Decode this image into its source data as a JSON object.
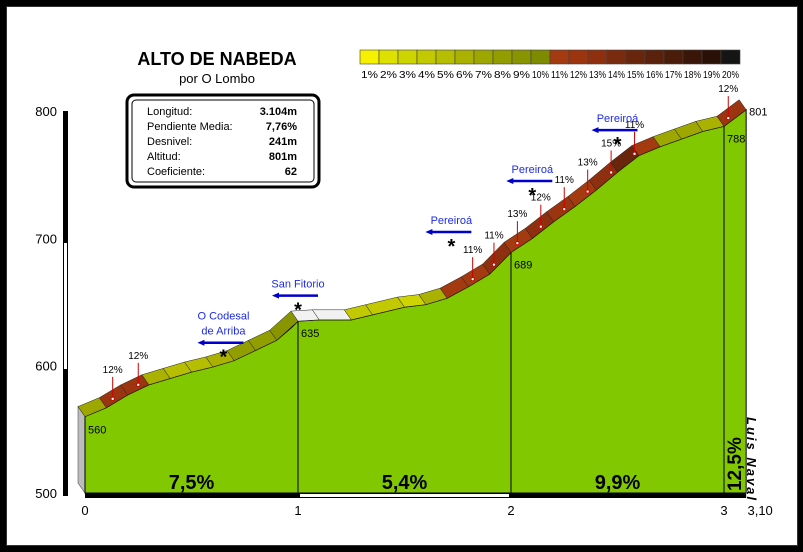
{
  "chart_data": {
    "type": "area",
    "title": "ALTO DE NABEDA",
    "subtitle": "por O Lombo",
    "info": [
      {
        "label": "Longitud:",
        "value": "3.104m"
      },
      {
        "label": "Pendiente Media:",
        "value": "7,76%"
      },
      {
        "label": "Desnivel:",
        "value": "241m"
      },
      {
        "label": "Altitud:",
        "value": "801m"
      },
      {
        "label": "Coeficiente:",
        "value": "62"
      }
    ],
    "scale": {
      "labels": [
        "1%",
        "2%",
        "3%",
        "4%",
        "5%",
        "6%",
        "7%",
        "8%",
        "9%",
        "10%",
        "11%",
        "12%",
        "13%",
        "14%",
        "15%",
        "16%",
        "17%",
        "18%",
        "19%",
        "20%"
      ],
      "colors": [
        "#f6f100",
        "#dde000",
        "#cdd400",
        "#c2c900",
        "#b7bd00",
        "#aab100",
        "#9ea700",
        "#929d00",
        "#889400",
        "#7e8a00",
        "#a33a10",
        "#9a3510",
        "#8e300f",
        "#7a2a0e",
        "#6a260d",
        "#5a210c",
        "#4b1c0a",
        "#3a1608",
        "#2a1006",
        "#151515"
      ]
    },
    "ylim": [
      500,
      800
    ],
    "yticks": [
      "500",
      "600",
      "700",
      "800"
    ],
    "xlim": [
      0,
      3.104
    ],
    "xticks": [
      {
        "x": 0,
        "label": "0"
      },
      {
        "x": 1,
        "label": "1"
      },
      {
        "x": 2,
        "label": "2"
      },
      {
        "x": 3,
        "label": "3"
      },
      {
        "x": 3.104,
        "label": "3,10"
      }
    ],
    "profile": [
      {
        "x": 0,
        "y": 560
      },
      {
        "x": 0.1,
        "y": 567
      },
      {
        "x": 0.2,
        "y": 577
      },
      {
        "x": 0.3,
        "y": 585
      },
      {
        "x": 0.4,
        "y": 590
      },
      {
        "x": 0.5,
        "y": 595
      },
      {
        "x": 0.6,
        "y": 599
      },
      {
        "x": 0.7,
        "y": 604
      },
      {
        "x": 0.8,
        "y": 612
      },
      {
        "x": 0.9,
        "y": 620
      },
      {
        "x": 0.97,
        "y": 630
      },
      {
        "x": 1,
        "y": 635
      },
      {
        "x": 1.1,
        "y": 636
      },
      {
        "x": 1.25,
        "y": 636
      },
      {
        "x": 1.35,
        "y": 640
      },
      {
        "x": 1.5,
        "y": 646
      },
      {
        "x": 1.6,
        "y": 648
      },
      {
        "x": 1.7,
        "y": 653
      },
      {
        "x": 1.8,
        "y": 662
      },
      {
        "x": 1.9,
        "y": 672
      },
      {
        "x": 2,
        "y": 689
      },
      {
        "x": 2.1,
        "y": 700
      },
      {
        "x": 2.2,
        "y": 713
      },
      {
        "x": 2.3,
        "y": 725
      },
      {
        "x": 2.4,
        "y": 738
      },
      {
        "x": 2.5,
        "y": 752
      },
      {
        "x": 2.6,
        "y": 765
      },
      {
        "x": 2.7,
        "y": 772
      },
      {
        "x": 2.8,
        "y": 778
      },
      {
        "x": 2.9,
        "y": 784
      },
      {
        "x": 3,
        "y": 788
      },
      {
        "x": 3.104,
        "y": 801
      }
    ],
    "slopes": [
      {
        "x0": 0,
        "x1": 0.1,
        "g": 7
      },
      {
        "x0": 0.1,
        "x1": 0.2,
        "g": 12
      },
      {
        "x0": 0.2,
        "x1": 0.3,
        "g": 12
      },
      {
        "x0": 0.3,
        "x1": 0.4,
        "g": 6
      },
      {
        "x0": 0.4,
        "x1": 0.5,
        "g": 5
      },
      {
        "x0": 0.5,
        "x1": 0.6,
        "g": 5
      },
      {
        "x0": 0.6,
        "x1": 0.7,
        "g": 6
      },
      {
        "x0": 0.7,
        "x1": 0.8,
        "g": 8
      },
      {
        "x0": 0.8,
        "x1": 0.9,
        "g": 8
      },
      {
        "x0": 0.9,
        "x1": 1,
        "g": 9
      },
      {
        "x0": 1,
        "x1": 1.1,
        "g": 1
      },
      {
        "x0": 1.1,
        "x1": 1.25,
        "g": 1
      },
      {
        "x0": 1.25,
        "x1": 1.35,
        "g": 4
      },
      {
        "x0": 1.35,
        "x1": 1.5,
        "g": 4
      },
      {
        "x0": 1.5,
        "x1": 1.6,
        "g": 3
      },
      {
        "x0": 1.6,
        "x1": 1.7,
        "g": 6
      },
      {
        "x0": 1.7,
        "x1": 1.8,
        "g": 11
      },
      {
        "x0": 1.8,
        "x1": 1.9,
        "g": 11
      },
      {
        "x0": 1.9,
        "x1": 2,
        "g": 13
      },
      {
        "x0": 2,
        "x1": 2.1,
        "g": 11
      },
      {
        "x0": 2.1,
        "x1": 2.2,
        "g": 13
      },
      {
        "x0": 2.2,
        "x1": 2.3,
        "g": 12
      },
      {
        "x0": 2.3,
        "x1": 2.4,
        "g": 11
      },
      {
        "x0": 2.4,
        "x1": 2.5,
        "g": 13
      },
      {
        "x0": 2.5,
        "x1": 2.6,
        "g": 15
      },
      {
        "x0": 2.6,
        "x1": 2.7,
        "g": 11
      },
      {
        "x0": 2.7,
        "x1": 2.8,
        "g": 7
      },
      {
        "x0": 2.8,
        "x1": 2.9,
        "g": 7
      },
      {
        "x0": 2.9,
        "x1": 3,
        "g": 6
      },
      {
        "x0": 3,
        "x1": 3.104,
        "g": 12
      }
    ],
    "slope_labels": [
      {
        "x": 0.13,
        "label": "12%"
      },
      {
        "x": 0.25,
        "label": "12%"
      },
      {
        "x": 1.82,
        "label": "11%"
      },
      {
        "x": 1.92,
        "label": "11%"
      },
      {
        "x": 2.03,
        "label": "13%"
      },
      {
        "x": 2.14,
        "label": "12%"
      },
      {
        "x": 2.25,
        "label": "11%"
      },
      {
        "x": 2.36,
        "label": "13%"
      },
      {
        "x": 2.47,
        "label": "15%"
      },
      {
        "x": 2.58,
        "label": "11%"
      },
      {
        "x": 3.02,
        "label": "12%"
      }
    ],
    "km_markers": [
      {
        "x": 0,
        "alt": "560",
        "avg": "7,5%"
      },
      {
        "x": 1,
        "alt": "635",
        "avg": "5,4%"
      },
      {
        "x": 2,
        "alt": "689",
        "avg": "9,9%"
      },
      {
        "x": 3,
        "alt": "788",
        "avg": "12,5%"
      }
    ],
    "extra_labels": {
      "top_alt": "801"
    },
    "places": [
      {
        "x": 0.65,
        "name": "O Codesal de Arriba",
        "lines": [
          "O Codesal",
          "de Arriba"
        ],
        "alt": 618
      },
      {
        "x": 1.0,
        "name": "San Fitorio",
        "lines": [
          "San Fitorio"
        ],
        "alt": 655
      },
      {
        "x": 1.72,
        "name": "Pereiroá",
        "lines": [
          "Pereiroá"
        ],
        "alt": 705
      },
      {
        "x": 2.1,
        "name": "Pereiroá",
        "lines": [
          "Pereiroá"
        ],
        "alt": 745
      },
      {
        "x": 2.5,
        "name": "Pereiroá",
        "lines": [
          "Pereiroá"
        ],
        "alt": 785
      }
    ],
    "author": "Luis Naval"
  }
}
